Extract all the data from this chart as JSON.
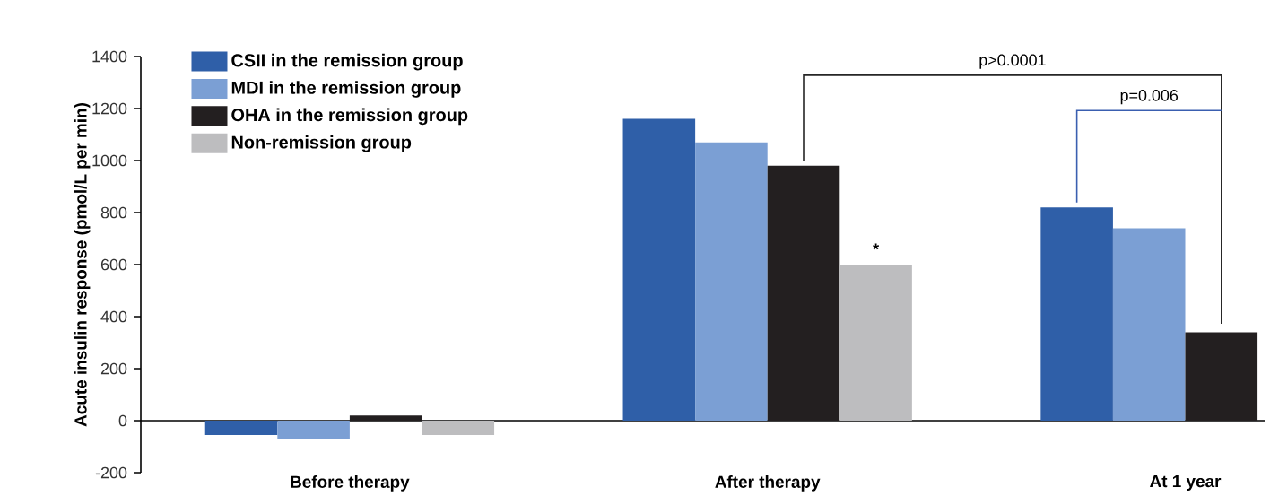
{
  "chart_data": {
    "type": "bar",
    "ylabel": "Acute insulin response (pmol/L per min)",
    "categories": [
      "Before therapy",
      "After therapy",
      "At 1 year"
    ],
    "series": [
      {
        "name": "CSII in the remission group",
        "color": "#2f5fa8",
        "values": [
          -55,
          1160,
          820
        ]
      },
      {
        "name": "MDI in the remission group",
        "color": "#7b9fd4",
        "values": [
          -70,
          1070,
          740
        ]
      },
      {
        "name": "OHA in the remission group",
        "color": "#231f20",
        "values": [
          20,
          980,
          340
        ]
      },
      {
        "name": "Non-remission group",
        "color": "#bdbdbf",
        "values": [
          -55,
          600,
          null
        ]
      }
    ],
    "ylim": [
      -200,
      1400
    ],
    "yticks": [
      -200,
      0,
      200,
      400,
      600,
      800,
      1000,
      1200,
      1400
    ],
    "legend": "top left",
    "annotations": [
      "p>0.0001",
      "p=0.006",
      "*"
    ]
  }
}
